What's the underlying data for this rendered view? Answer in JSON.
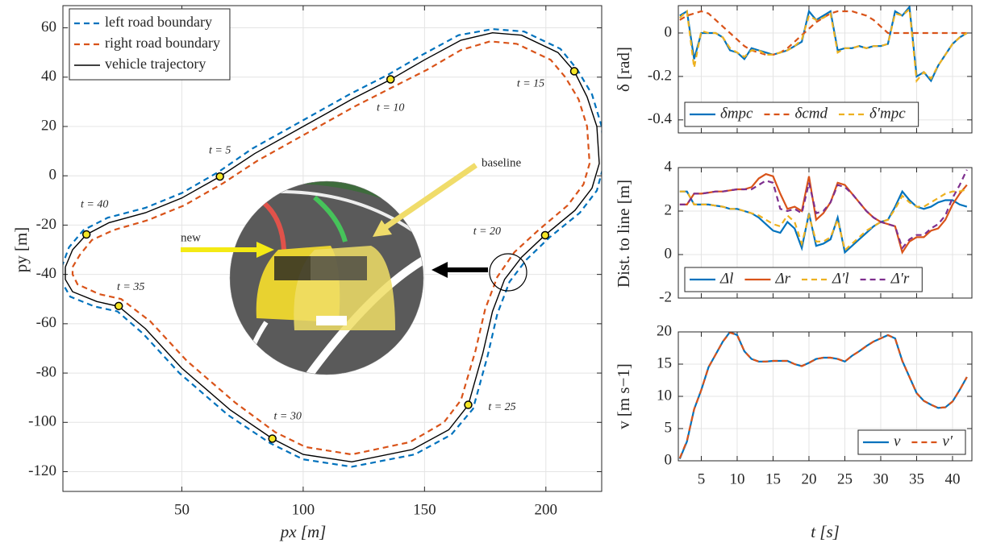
{
  "chart_data": [
    {
      "type": "line",
      "xlabel": "px [m]",
      "ylabel": "py [m]",
      "xlim": [
        1,
        223
      ],
      "ylim": [
        -128,
        69
      ],
      "xticks": [
        50,
        100,
        150,
        200
      ],
      "yticks": [
        60,
        40,
        20,
        0,
        -20,
        -40,
        -60,
        -80,
        -100,
        -120
      ],
      "grid": true,
      "legend": "upper left",
      "legend_orientation": "vertical",
      "series": [
        {
          "name": "left road boundary",
          "color": "#0072bd",
          "style": "dashed",
          "x": [
            0.5,
            3.5,
            9.5,
            19.5,
            35,
            50,
            65,
            79,
            99,
            119,
            135,
            149,
            164,
            178,
            191,
            206,
            213,
            219,
            223,
            224,
            221,
            214,
            201.5,
            192,
            185,
            180,
            176,
            170,
            161,
            146,
            120,
            100,
            86.5,
            69,
            49,
            34,
            23.5,
            14,
            4,
            0.5,
            0.5
          ],
          "values": [
            -37,
            -29,
            -22,
            -17,
            -13,
            -7,
            1.5,
            11,
            22,
            33,
            41,
            49,
            57,
            59.5,
            58.5,
            51.5,
            43,
            33,
            20,
            5,
            -6,
            -15,
            -25,
            -34,
            -43,
            -56,
            -73,
            -94.5,
            -105,
            -113,
            -118,
            -115,
            -108.5,
            -97,
            -80,
            -64,
            -55,
            -53,
            -49,
            -43,
            -37
          ]
        },
        {
          "name": "right road boundary",
          "color": "#d95319",
          "style": "dashed",
          "x": [
            5,
            8,
            13,
            22,
            36,
            51,
            67,
            81,
            101,
            121,
            137,
            151,
            165,
            177,
            188,
            202,
            208,
            213.5,
            217,
            218,
            215.5,
            209,
            197,
            187,
            180,
            175,
            171,
            165,
            158,
            144,
            120,
            101,
            88.5,
            72,
            52,
            37,
            25,
            16,
            7,
            5,
            5
          ],
          "values": [
            -37,
            -32,
            -26,
            -22,
            -18,
            -12,
            -3,
            6,
            17,
            28,
            36,
            43,
            51,
            54.5,
            53.5,
            47,
            40,
            31,
            20,
            5,
            -3.5,
            -12,
            -22,
            -31,
            -41,
            -54,
            -71,
            -91,
            -100,
            -108,
            -113,
            -110,
            -104,
            -92,
            -75,
            -59,
            -50,
            -48,
            -44,
            -40,
            -37
          ]
        },
        {
          "name": "vehicle trajectory",
          "color": "#000000",
          "style": "solid",
          "x": [
            2,
            5,
            10.7,
            20,
            35,
            50,
            65.7,
            80,
            100,
            120,
            136,
            150,
            165,
            178,
            190,
            205,
            211.7,
            217,
            221,
            222,
            219,
            212,
            199.7,
            190,
            183,
            178,
            174,
            168,
            160,
            145,
            120,
            100,
            87.3,
            70,
            50,
            35,
            24,
            15,
            5,
            2,
            2
          ],
          "values": [
            -37,
            -30,
            -23.8,
            -19,
            -15,
            -9,
            -0.3,
            9,
            20,
            31,
            39,
            47,
            55,
            58,
            57,
            50,
            42.4,
            32,
            20,
            5,
            -5,
            -14,
            -24,
            -33,
            -42,
            -55,
            -72,
            -93,
            -103,
            -111,
            -116,
            -113,
            -106.6,
            -95,
            -78,
            -62,
            -53,
            -51,
            -47,
            -42,
            -37
          ]
        }
      ],
      "annotations": [
        {
          "text": "t = 5",
          "x": 65.7,
          "y": -0.3
        },
        {
          "text": "t = 10",
          "x": 136,
          "y": 39.1
        },
        {
          "text": "t = 15",
          "x": 211.7,
          "y": 42.4
        },
        {
          "text": "t = 20",
          "x": 199.7,
          "y": -24.1
        },
        {
          "text": "t = 25",
          "x": 168,
          "y": -92.9
        },
        {
          "text": "t = 30",
          "x": 87.3,
          "y": -106.6
        },
        {
          "text": "t = 35",
          "x": 24,
          "y": -52.8
        },
        {
          "text": "t = 40",
          "x": 10.7,
          "y": -23.8
        }
      ],
      "inset_labels": [
        "new",
        "baseline"
      ]
    },
    {
      "type": "line",
      "ylabel": "δ [rad]",
      "xlim": [
        1.8,
        42.7
      ],
      "ylim": [
        -0.46,
        0.126
      ],
      "yticks": [
        0,
        -0.2,
        -0.4
      ],
      "grid": true,
      "legend": "lower left",
      "legend_orientation": "horizontal",
      "x": [
        2,
        3,
        4,
        5,
        6,
        7,
        8,
        9,
        10,
        11,
        12,
        13,
        14,
        15,
        16,
        17,
        18,
        19,
        20,
        21,
        22,
        23,
        24,
        25,
        26,
        27,
        28,
        29,
        30,
        31,
        32,
        33,
        34,
        35,
        36,
        37,
        38,
        39,
        40,
        41,
        42
      ],
      "series": [
        {
          "name": "δmpc",
          "color": "#0072bd",
          "style": "solid",
          "values": [
            0.08,
            0.1,
            -0.12,
            0,
            0,
            0,
            -0.02,
            -0.08,
            -0.09,
            -0.12,
            -0.07,
            -0.08,
            -0.09,
            -0.1,
            -0.09,
            -0.08,
            -0.06,
            -0.04,
            0.1,
            0.06,
            0.08,
            0.1,
            -0.08,
            -0.07,
            -0.07,
            -0.06,
            -0.07,
            -0.06,
            -0.06,
            -0.05,
            0.1,
            0.08,
            0.12,
            -0.2,
            -0.18,
            -0.22,
            -0.15,
            -0.1,
            -0.05,
            -0.02,
            0
          ]
        },
        {
          "name": "δcmd",
          "color": "#d95319",
          "style": "dashed",
          "values": [
            0.06,
            0.08,
            0.09,
            0.1,
            0.09,
            0.06,
            0.03,
            0,
            -0.03,
            -0.06,
            -0.08,
            -0.09,
            -0.1,
            -0.1,
            -0.09,
            -0.07,
            -0.04,
            -0.01,
            0.02,
            0.05,
            0.07,
            0.09,
            0.1,
            0.1,
            0.1,
            0.09,
            0.08,
            0.06,
            0.03,
            0,
            0,
            0,
            0,
            0,
            0,
            0,
            0,
            0,
            0,
            0,
            0
          ]
        },
        {
          "name": "δ′mpc",
          "color": "#edb120",
          "style": "dashed",
          "values": [
            0.07,
            0.1,
            -0.16,
            0.01,
            0,
            0,
            -0.02,
            -0.07,
            -0.09,
            -0.11,
            -0.08,
            -0.08,
            -0.1,
            -0.1,
            -0.09,
            -0.08,
            -0.06,
            -0.03,
            0.08,
            0.06,
            0.07,
            0.09,
            -0.09,
            -0.07,
            -0.07,
            -0.06,
            -0.07,
            -0.06,
            -0.06,
            -0.05,
            0.09,
            0.08,
            0.11,
            -0.22,
            -0.18,
            -0.21,
            -0.15,
            -0.1,
            -0.05,
            -0.02,
            0
          ]
        }
      ]
    },
    {
      "type": "line",
      "ylabel": "Dist. to line [m]",
      "xlim": [
        1.8,
        42.7
      ],
      "ylim": [
        -2,
        4
      ],
      "yticks": [
        4,
        2,
        0,
        -2
      ],
      "grid": true,
      "legend": "lower left",
      "legend_orientation": "horizontal",
      "x": [
        2,
        3,
        4,
        5,
        6,
        7,
        8,
        9,
        10,
        11,
        12,
        13,
        14,
        15,
        16,
        17,
        18,
        19,
        20,
        21,
        22,
        23,
        24,
        25,
        26,
        27,
        28,
        29,
        30,
        31,
        32,
        33,
        34,
        35,
        36,
        37,
        38,
        39,
        40,
        41,
        42
      ],
      "series": [
        {
          "name": "Δl",
          "color": "#0072bd",
          "style": "solid",
          "values": [
            2.9,
            2.9,
            2.3,
            2.3,
            2.3,
            2.25,
            2.2,
            2.1,
            2.1,
            2.0,
            1.9,
            1.7,
            1.4,
            1.1,
            1.0,
            1.5,
            1.2,
            0.3,
            1.9,
            0.4,
            0.5,
            0.7,
            1.7,
            0.1,
            0.4,
            0.7,
            1.0,
            1.3,
            1.5,
            1.6,
            2.2,
            2.9,
            2.5,
            2.2,
            2.1,
            2.2,
            2.4,
            2.5,
            2.5,
            2.3,
            2.2
          ]
        },
        {
          "name": "Δr",
          "color": "#d95319",
          "style": "solid",
          "values": [
            2.3,
            2.3,
            2.8,
            2.8,
            2.85,
            2.9,
            2.9,
            2.95,
            3.0,
            3.0,
            3.1,
            3.5,
            3.7,
            3.6,
            2.8,
            2.1,
            2.2,
            2.0,
            3.6,
            1.6,
            1.9,
            2.4,
            3.3,
            3.2,
            2.8,
            2.4,
            2.0,
            1.7,
            1.5,
            1.4,
            1.3,
            0.1,
            0.6,
            0.8,
            0.8,
            1.1,
            1.2,
            1.6,
            2.3,
            2.8,
            3.2
          ]
        },
        {
          "name": "Δ′l",
          "color": "#edb120",
          "style": "dashed",
          "values": [
            2.9,
            2.9,
            2.3,
            2.3,
            2.3,
            2.25,
            2.2,
            2.1,
            2.1,
            2.0,
            1.9,
            1.8,
            1.6,
            1.4,
            1.3,
            1.8,
            1.5,
            0.5,
            1.8,
            0.6,
            0.6,
            0.8,
            1.6,
            0.2,
            0.5,
            0.8,
            1.1,
            1.3,
            1.5,
            1.6,
            2.1,
            2.7,
            2.4,
            2.2,
            2.2,
            2.4,
            2.6,
            2.8,
            2.9,
            2.9,
            3.0
          ]
        },
        {
          "name": "Δ′r",
          "color": "#7e2f8e",
          "style": "dashed",
          "values": [
            2.3,
            2.3,
            2.8,
            2.8,
            2.85,
            2.9,
            2.9,
            2.95,
            3.0,
            3.0,
            3.0,
            3.2,
            3.4,
            3.3,
            2.1,
            2.0,
            2.1,
            1.9,
            3.3,
            1.9,
            2.0,
            2.4,
            3.2,
            3.1,
            2.8,
            2.4,
            2.0,
            1.7,
            1.5,
            1.4,
            1.3,
            0.3,
            0.7,
            0.9,
            0.9,
            1.2,
            1.4,
            1.8,
            2.6,
            3.2,
            3.9
          ]
        }
      ]
    },
    {
      "type": "line",
      "ylabel": "v [m s−1]",
      "xlabel": "t [s]",
      "xlim": [
        1.8,
        42.7
      ],
      "ylim": [
        0,
        20
      ],
      "xticks": [
        5,
        10,
        15,
        20,
        25,
        30,
        35,
        40
      ],
      "yticks": [
        20,
        15,
        10,
        5,
        0
      ],
      "grid": true,
      "legend": "lower right",
      "legend_orientation": "horizontal",
      "x": [
        2,
        3,
        4,
        5,
        6,
        7,
        8,
        9,
        10,
        11,
        12,
        13,
        14,
        15,
        16,
        17,
        18,
        19,
        20,
        21,
        22,
        23,
        24,
        25,
        26,
        27,
        28,
        29,
        30,
        31,
        32,
        33,
        34,
        35,
        36,
        37,
        38,
        39,
        40,
        41,
        42
      ],
      "series": [
        {
          "name": "v",
          "color": "#0072bd",
          "style": "solid",
          "values": [
            0.3,
            3,
            8,
            11,
            14.5,
            16.5,
            18.5,
            20,
            19.5,
            17,
            15.8,
            15.4,
            15.4,
            15.5,
            15.5,
            15.5,
            15,
            14.7,
            15.2,
            15.8,
            16,
            16,
            15.8,
            15.4,
            16.3,
            17,
            17.8,
            18.5,
            19,
            19.5,
            19,
            15.5,
            13,
            10.5,
            9.3,
            8.7,
            8.2,
            8.3,
            9.2,
            11,
            13
          ]
        },
        {
          "name": "v′",
          "color": "#d95319",
          "style": "dashed",
          "values": [
            0.4,
            3.1,
            8,
            11,
            14.5,
            16.5,
            18.5,
            19.9,
            19.5,
            17,
            15.8,
            15.4,
            15.4,
            15.5,
            15.5,
            15.5,
            15,
            14.7,
            15.2,
            15.8,
            16,
            16,
            15.8,
            15.4,
            16.3,
            17,
            17.8,
            18.5,
            19,
            19.5,
            19,
            15.5,
            13,
            10.5,
            9.3,
            8.7,
            8.2,
            8.3,
            9.2,
            11,
            13
          ]
        }
      ]
    }
  ]
}
